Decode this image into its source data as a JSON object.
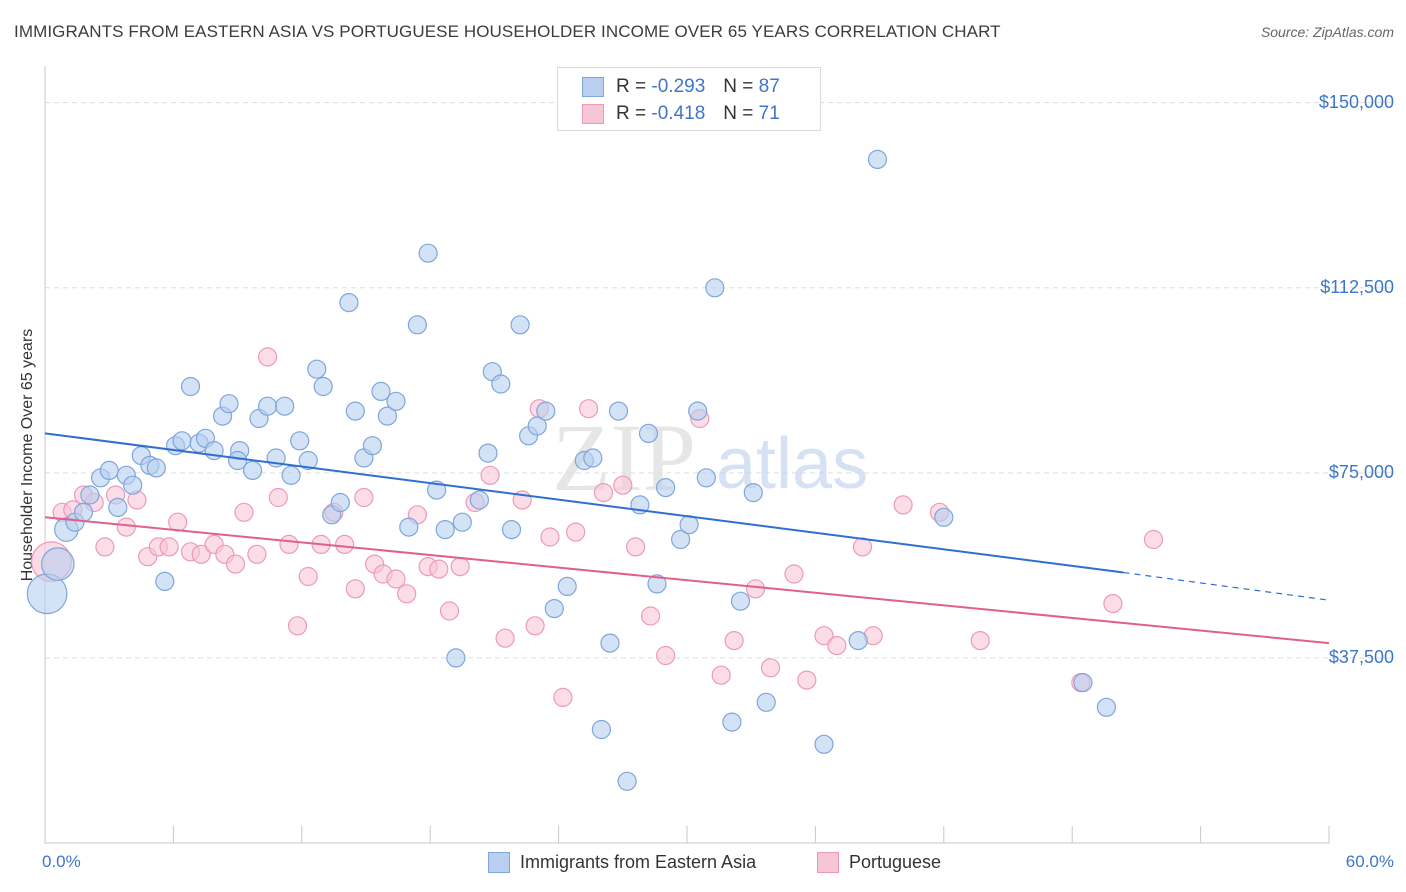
{
  "header": {
    "title": "IMMIGRANTS FROM EASTERN ASIA VS PORTUGUESE HOUSEHOLDER INCOME OVER 65 YEARS CORRELATION CHART",
    "source": "Source: ZipAtlas.com"
  },
  "watermark": {
    "zip": "ZIP",
    "atlas": "atlas"
  },
  "colors": {
    "blue_fill": "#b8cff0",
    "blue_stroke": "#7ea6dc",
    "blue_line": "#2f6fd0",
    "pink_fill": "#f7c6d6",
    "pink_stroke": "#ee9ab7",
    "pink_line": "#e0608c",
    "tick_text": "#3e76c9",
    "grid": "#dddddd"
  },
  "legend_top": {
    "rows": [
      {
        "r_label": "R =",
        "r_value": "-0.293",
        "n_label": "N =",
        "n_value": "87"
      },
      {
        "r_label": "R =",
        "r_value": "-0.418",
        "n_label": "N =",
        "n_value": "71"
      }
    ]
  },
  "legend_bottom": {
    "items": [
      {
        "label": "Immigrants from Eastern Asia"
      },
      {
        "label": "Portuguese"
      }
    ]
  },
  "chart_data": {
    "type": "scatter",
    "title": "IMMIGRANTS FROM EASTERN ASIA VS PORTUGUESE HOUSEHOLDER INCOME OVER 65 YEARS CORRELATION CHART",
    "xlabel": "",
    "ylabel": "Householder Income Over 65 years",
    "xlim": [
      0,
      60
    ],
    "ylim": [
      0,
      155000
    ],
    "x_tick_labels": [
      "0.0%",
      "60.0%"
    ],
    "y_ticks": [
      37500,
      75000,
      112500,
      150000
    ],
    "y_tick_labels": [
      "$37,500",
      "$75,000",
      "$112,500",
      "$150,000"
    ],
    "grid": true,
    "legend_placement": "top-center",
    "series": [
      {
        "name": "Immigrants from Eastern Asia",
        "r": -0.293,
        "n": 87,
        "trend": {
          "x0": 0,
          "y0": 83000,
          "x1": 50.4,
          "y1": 54800,
          "dash_to_x": 60,
          "dash_to_y": 49200
        },
        "points": [
          [
            0.1,
            50500,
            2.2
          ],
          [
            0.6,
            56500,
            1.8
          ],
          [
            1.0,
            63500,
            1.3
          ],
          [
            1.4,
            65000,
            1.0
          ],
          [
            1.8,
            67000,
            1.0
          ],
          [
            2.1,
            70500,
            1.0
          ],
          [
            2.6,
            74000,
            1.0
          ],
          [
            3.0,
            75500,
            1.0
          ],
          [
            3.4,
            68000,
            1.0
          ],
          [
            3.8,
            74500,
            1.0
          ],
          [
            4.1,
            72500,
            1.0
          ],
          [
            4.5,
            78500,
            1.0
          ],
          [
            4.9,
            76500,
            1.0
          ],
          [
            5.2,
            76000,
            1.0
          ],
          [
            5.6,
            53000,
            1.0
          ],
          [
            6.1,
            80500,
            1.0
          ],
          [
            6.4,
            81500,
            1.0
          ],
          [
            6.8,
            92500,
            1.0
          ],
          [
            7.2,
            81000,
            1.0
          ],
          [
            7.5,
            82000,
            1.0
          ],
          [
            7.9,
            79500,
            1.0
          ],
          [
            8.3,
            86500,
            1.0
          ],
          [
            8.6,
            89000,
            1.0
          ],
          [
            9.1,
            79500,
            1.0
          ],
          [
            9.0,
            77500,
            1.0
          ],
          [
            9.7,
            75500,
            1.0
          ],
          [
            10.0,
            86000,
            1.0
          ],
          [
            10.4,
            88500,
            1.0
          ],
          [
            10.8,
            78000,
            1.0
          ],
          [
            11.2,
            88500,
            1.0
          ],
          [
            11.5,
            74500,
            1.0
          ],
          [
            11.9,
            81500,
            1.0
          ],
          [
            12.3,
            77500,
            1.0
          ],
          [
            12.7,
            96000,
            1.0
          ],
          [
            13.0,
            92500,
            1.0
          ],
          [
            13.4,
            66500,
            1.0
          ],
          [
            13.8,
            69000,
            1.0
          ],
          [
            14.2,
            109500,
            1.0
          ],
          [
            14.5,
            87500,
            1.0
          ],
          [
            14.9,
            78000,
            1.0
          ],
          [
            15.3,
            80500,
            1.0
          ],
          [
            15.7,
            91500,
            1.0
          ],
          [
            16.0,
            86500,
            1.0
          ],
          [
            16.4,
            89500,
            1.0
          ],
          [
            17.0,
            64000,
            1.0
          ],
          [
            17.4,
            105000,
            1.0
          ],
          [
            17.9,
            119500,
            1.0
          ],
          [
            18.3,
            71500,
            1.0
          ],
          [
            18.7,
            63500,
            1.0
          ],
          [
            19.2,
            37500,
            1.0
          ],
          [
            19.5,
            65000,
            1.0
          ],
          [
            20.3,
            69500,
            1.0
          ],
          [
            20.7,
            79000,
            1.0
          ],
          [
            20.9,
            95500,
            1.0
          ],
          [
            21.3,
            93000,
            1.0
          ],
          [
            21.8,
            63500,
            1.0
          ],
          [
            22.2,
            105000,
            1.0
          ],
          [
            22.6,
            82500,
            1.0
          ],
          [
            23.0,
            84500,
            1.0
          ],
          [
            23.4,
            87500,
            1.0
          ],
          [
            23.8,
            47500,
            1.0
          ],
          [
            24.4,
            52000,
            1.0
          ],
          [
            25.2,
            77500,
            1.0
          ],
          [
            25.6,
            78000,
            1.0
          ],
          [
            26.0,
            23000,
            1.0
          ],
          [
            26.4,
            40500,
            1.0
          ],
          [
            26.8,
            87500,
            1.0
          ],
          [
            27.2,
            12500,
            1.0
          ],
          [
            27.8,
            68500,
            1.0
          ],
          [
            28.2,
            83000,
            1.0
          ],
          [
            28.6,
            52500,
            1.0
          ],
          [
            29.0,
            72000,
            1.0
          ],
          [
            29.7,
            61500,
            1.0
          ],
          [
            30.1,
            64500,
            1.0
          ],
          [
            30.5,
            87500,
            1.0
          ],
          [
            30.9,
            74000,
            1.0
          ],
          [
            31.3,
            112500,
            1.0
          ],
          [
            32.1,
            24500,
            1.0
          ],
          [
            32.5,
            49000,
            1.0
          ],
          [
            33.1,
            71000,
            1.0
          ],
          [
            33.7,
            28500,
            1.0
          ],
          [
            36.4,
            20000,
            1.0
          ],
          [
            38.0,
            41000,
            1.0
          ],
          [
            38.9,
            138500,
            1.0
          ],
          [
            42.0,
            66000,
            1.0
          ],
          [
            48.5,
            32500,
            1.0
          ],
          [
            49.6,
            27500,
            1.0
          ]
        ]
      },
      {
        "name": "Portuguese",
        "r": -0.418,
        "n": 71,
        "trend": {
          "x0": 0,
          "y0": 66000,
          "x1": 60,
          "y1": 40500
        },
        "points": [
          [
            0.3,
            57000,
            2.2
          ],
          [
            0.8,
            67000,
            1.0
          ],
          [
            1.3,
            67500,
            1.0
          ],
          [
            1.8,
            70500,
            1.0
          ],
          [
            2.3,
            69000,
            1.0
          ],
          [
            2.8,
            60000,
            1.0
          ],
          [
            3.3,
            70500,
            1.0
          ],
          [
            3.8,
            64000,
            1.0
          ],
          [
            4.3,
            69500,
            1.0
          ],
          [
            4.8,
            58000,
            1.0
          ],
          [
            5.3,
            60000,
            1.0
          ],
          [
            5.8,
            60000,
            1.0
          ],
          [
            6.2,
            65000,
            1.0
          ],
          [
            6.8,
            59000,
            1.0
          ],
          [
            7.3,
            58500,
            1.0
          ],
          [
            7.9,
            60500,
            1.0
          ],
          [
            8.4,
            58500,
            1.0
          ],
          [
            8.9,
            56500,
            1.0
          ],
          [
            9.3,
            67000,
            1.0
          ],
          [
            9.9,
            58500,
            1.0
          ],
          [
            10.4,
            98500,
            1.0
          ],
          [
            10.9,
            70000,
            1.0
          ],
          [
            11.4,
            60500,
            1.0
          ],
          [
            11.8,
            44000,
            1.0
          ],
          [
            12.3,
            54000,
            1.0
          ],
          [
            12.9,
            60500,
            1.0
          ],
          [
            13.5,
            67000,
            1.0
          ],
          [
            14.0,
            60500,
            1.0
          ],
          [
            14.5,
            51500,
            1.0
          ],
          [
            14.9,
            70000,
            1.0
          ],
          [
            15.4,
            56500,
            1.0
          ],
          [
            15.8,
            54500,
            1.0
          ],
          [
            16.4,
            53500,
            1.0
          ],
          [
            16.9,
            50500,
            1.0
          ],
          [
            17.4,
            66500,
            1.0
          ],
          [
            17.9,
            56000,
            1.0
          ],
          [
            18.4,
            55500,
            1.0
          ],
          [
            18.9,
            47000,
            1.0
          ],
          [
            19.4,
            56000,
            1.0
          ],
          [
            20.1,
            69000,
            1.0
          ],
          [
            20.8,
            74500,
            1.0
          ],
          [
            21.5,
            41500,
            1.0
          ],
          [
            22.3,
            69500,
            1.0
          ],
          [
            22.9,
            44000,
            1.0
          ],
          [
            23.6,
            62000,
            1.0
          ],
          [
            24.2,
            29500,
            1.0
          ],
          [
            24.8,
            63000,
            1.0
          ],
          [
            25.4,
            88000,
            1.0
          ],
          [
            26.1,
            71000,
            1.0
          ],
          [
            27.0,
            72500,
            1.0
          ],
          [
            27.6,
            60000,
            1.0
          ],
          [
            28.3,
            46000,
            1.0
          ],
          [
            29.0,
            38000,
            1.0
          ],
          [
            30.6,
            86000,
            1.0
          ],
          [
            31.6,
            34000,
            1.0
          ],
          [
            32.2,
            41000,
            1.0
          ],
          [
            33.2,
            51500,
            1.0
          ],
          [
            33.9,
            35500,
            1.0
          ],
          [
            35.0,
            54500,
            1.0
          ],
          [
            35.6,
            33000,
            1.0
          ],
          [
            36.4,
            42000,
            1.0
          ],
          [
            37.0,
            40000,
            1.0
          ],
          [
            38.7,
            42000,
            1.0
          ],
          [
            38.2,
            60000,
            1.0
          ],
          [
            40.1,
            68500,
            1.0
          ],
          [
            41.8,
            67000,
            1.0
          ],
          [
            43.7,
            41000,
            1.0
          ],
          [
            48.4,
            32500,
            1.0
          ],
          [
            49.9,
            48500,
            1.0
          ],
          [
            51.8,
            61500,
            1.0
          ],
          [
            23.1,
            88000,
            1.0
          ]
        ]
      }
    ]
  }
}
